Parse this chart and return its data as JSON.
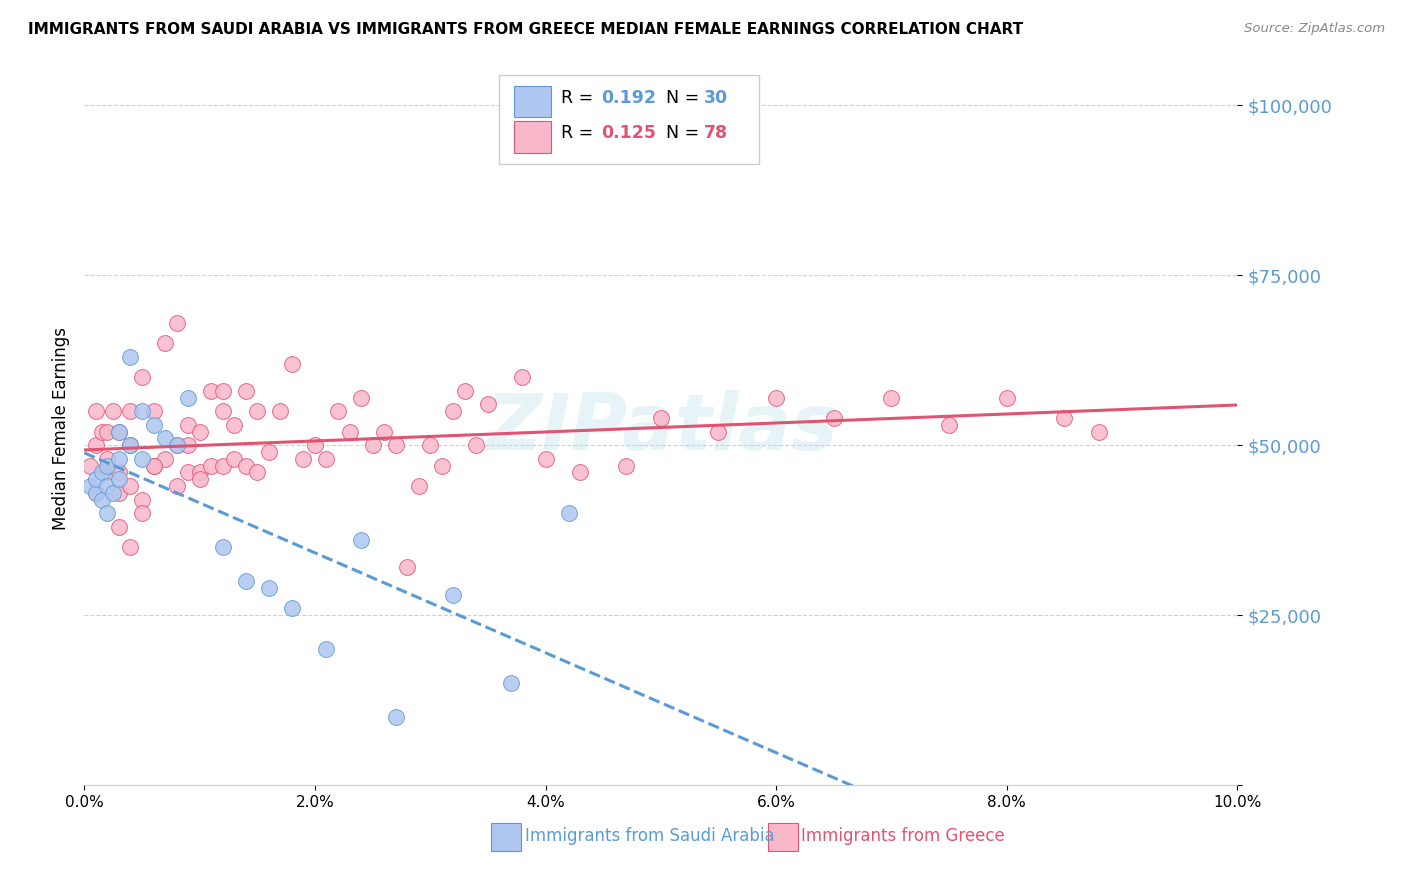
{
  "title": "IMMIGRANTS FROM SAUDI ARABIA VS IMMIGRANTS FROM GREECE MEDIAN FEMALE EARNINGS CORRELATION CHART",
  "source": "Source: ZipAtlas.com",
  "ylabel": "Median Female Earnings",
  "y_ticks": [
    0,
    25000,
    50000,
    75000,
    100000
  ],
  "y_tick_labels": [
    "",
    "$25,000",
    "$50,000",
    "$75,000",
    "$100,000"
  ],
  "x_min": 0.0,
  "x_max": 0.1,
  "y_min": 0,
  "y_max": 105000,
  "color_saudi": "#aec6f0",
  "color_greece": "#f9b8ca",
  "line_color_saudi": "#5b9bd5",
  "line_color_greece": "#e05472",
  "label_saudi": "Immigrants from Saudi Arabia",
  "label_greece": "Immigrants from Greece",
  "watermark": "ZIPatlas",
  "background_color": "#ffffff",
  "grid_color": "#cccccc",
  "saudi_x": [
    0.0005,
    0.001,
    0.001,
    0.0015,
    0.0015,
    0.002,
    0.002,
    0.002,
    0.0025,
    0.003,
    0.003,
    0.003,
    0.004,
    0.004,
    0.005,
    0.005,
    0.006,
    0.007,
    0.008,
    0.009,
    0.012,
    0.014,
    0.016,
    0.018,
    0.021,
    0.024,
    0.027,
    0.032,
    0.037,
    0.042
  ],
  "saudi_y": [
    44000,
    43000,
    45000,
    42000,
    46000,
    40000,
    44000,
    47000,
    43000,
    45000,
    48000,
    52000,
    63000,
    50000,
    48000,
    55000,
    53000,
    51000,
    50000,
    57000,
    35000,
    30000,
    29000,
    26000,
    20000,
    36000,
    10000,
    28000,
    15000,
    40000
  ],
  "greece_x": [
    0.0005,
    0.001,
    0.001,
    0.001,
    0.0015,
    0.002,
    0.002,
    0.002,
    0.0025,
    0.003,
    0.003,
    0.003,
    0.004,
    0.004,
    0.004,
    0.005,
    0.005,
    0.006,
    0.006,
    0.007,
    0.007,
    0.008,
    0.008,
    0.009,
    0.009,
    0.01,
    0.01,
    0.011,
    0.011,
    0.012,
    0.012,
    0.013,
    0.013,
    0.014,
    0.014,
    0.015,
    0.015,
    0.016,
    0.017,
    0.018,
    0.019,
    0.02,
    0.021,
    0.022,
    0.023,
    0.024,
    0.025,
    0.026,
    0.027,
    0.028,
    0.029,
    0.03,
    0.031,
    0.032,
    0.033,
    0.034,
    0.035,
    0.038,
    0.04,
    0.043,
    0.047,
    0.05,
    0.055,
    0.06,
    0.065,
    0.07,
    0.075,
    0.08,
    0.085,
    0.088,
    0.003,
    0.004,
    0.005,
    0.006,
    0.008,
    0.009,
    0.01,
    0.012
  ],
  "greece_y": [
    47000,
    50000,
    55000,
    43000,
    52000,
    46000,
    52000,
    48000,
    55000,
    43000,
    46000,
    52000,
    44000,
    50000,
    55000,
    42000,
    60000,
    47000,
    55000,
    48000,
    65000,
    44000,
    50000,
    46000,
    53000,
    46000,
    52000,
    47000,
    58000,
    47000,
    55000,
    48000,
    53000,
    47000,
    58000,
    46000,
    55000,
    49000,
    55000,
    62000,
    48000,
    50000,
    48000,
    55000,
    52000,
    57000,
    50000,
    52000,
    50000,
    32000,
    44000,
    50000,
    47000,
    55000,
    58000,
    50000,
    56000,
    60000,
    48000,
    46000,
    47000,
    54000,
    52000,
    57000,
    54000,
    57000,
    53000,
    57000,
    54000,
    52000,
    38000,
    35000,
    40000,
    47000,
    68000,
    50000,
    45000,
    58000
  ]
}
